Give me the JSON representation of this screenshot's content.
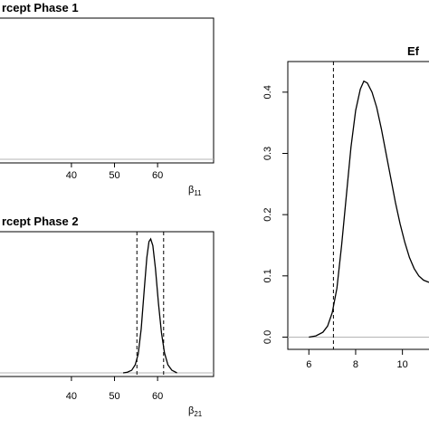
{
  "chart_data": [
    {
      "type": "line",
      "title": "rcept Phase 1",
      "xlabel": "β",
      "xlabel_sub": "11",
      "ylabel": "",
      "x_ticks": [
        40,
        50,
        60
      ],
      "xlim": [
        23,
        73
      ],
      "ylim": [
        0,
        0.45
      ],
      "series": [
        {
          "x": [
            23,
            73
          ],
          "y": [
            0,
            0
          ]
        }
      ],
      "vlines": []
    },
    {
      "type": "line",
      "title": "rcept Phase 2",
      "xlabel": "β",
      "xlabel_sub": "21",
      "ylabel": "",
      "x_ticks": [
        40,
        50,
        60
      ],
      "xlim": [
        23,
        73
      ],
      "ylim": [
        0,
        1
      ],
      "series": [
        {
          "x": [
            52,
            53,
            54,
            54.8,
            55.5,
            56.2,
            56.9,
            57.5,
            58.0,
            58.4,
            58.9,
            59.5,
            60.2,
            60.9,
            61.6,
            62.4,
            63.3,
            64.5
          ],
          "y": [
            0.0,
            0.005,
            0.02,
            0.06,
            0.14,
            0.33,
            0.62,
            0.86,
            0.98,
            1.0,
            0.95,
            0.78,
            0.52,
            0.3,
            0.15,
            0.06,
            0.02,
            0.0
          ]
        }
      ],
      "vlines": [
        55.2,
        61.4
      ]
    },
    {
      "type": "line",
      "title": "Ef",
      "xlabel": "",
      "ylabel": "",
      "x_ticks": [
        6,
        8,
        10
      ],
      "y_ticks": [
        "0.0",
        "0.1",
        "0.2",
        "0.3",
        "0.4"
      ],
      "xlim": [
        5.1,
        11.6
      ],
      "ylim": [
        -0.02,
        0.45
      ],
      "series": [
        {
          "x": [
            6.0,
            6.3,
            6.6,
            6.8,
            7.0,
            7.2,
            7.4,
            7.6,
            7.8,
            8.0,
            8.2,
            8.35,
            8.5,
            8.7,
            8.9,
            9.1,
            9.3,
            9.5,
            9.7,
            9.9,
            10.1,
            10.3,
            10.5,
            10.7,
            10.9,
            11.1,
            11.3,
            11.6
          ],
          "y": [
            0.0,
            0.002,
            0.008,
            0.018,
            0.04,
            0.08,
            0.15,
            0.23,
            0.31,
            0.37,
            0.405,
            0.418,
            0.415,
            0.4,
            0.375,
            0.34,
            0.3,
            0.26,
            0.22,
            0.185,
            0.155,
            0.13,
            0.112,
            0.1,
            0.093,
            0.09,
            0.088,
            0.087
          ]
        }
      ],
      "vlines": [
        7.05
      ]
    }
  ]
}
